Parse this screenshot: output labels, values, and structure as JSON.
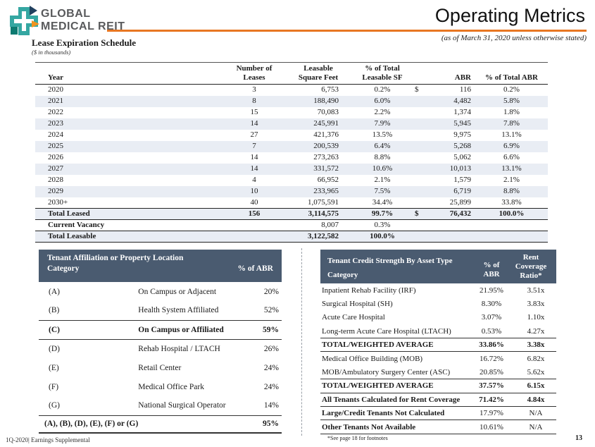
{
  "brand": {
    "name_line1": "GLOBAL",
    "name_line2": "MEDICAL REIT"
  },
  "header": {
    "title": "Operating Metrics",
    "as_of_note": "(as of March 31, 2020 unless otherwise stated)"
  },
  "section": {
    "title": "Lease Expiration Schedule",
    "units": "($ in thousands)"
  },
  "colors": {
    "accent_orange": "#E87722",
    "table_header_band": "#4A5B70",
    "row_stripe": "#E9EDF4",
    "logo_teal": "#35A7A2",
    "logo_navy": "#20405E",
    "logo_orange": "#F0941F",
    "logo_dark_teal": "#0D7A70"
  },
  "lease_table": {
    "col_year": "Year",
    "col_leases": [
      "Number of",
      "Leases"
    ],
    "col_sf": [
      "Leasable",
      "Square Feet"
    ],
    "col_sf_pct": [
      "% of Total",
      "Leasable SF"
    ],
    "col_abr": "ABR",
    "col_abr_pct": "% of Total ABR",
    "rows": [
      {
        "year": "2020",
        "leases": "3",
        "sf": "6,753",
        "sf_pct": "0.2%",
        "cur": "$",
        "abr": "116",
        "abr_pct": "0.2%",
        "style": "normal"
      },
      {
        "year": "2021",
        "leases": "8",
        "sf": "188,490",
        "sf_pct": "6.0%",
        "cur": "",
        "abr": "4,482",
        "abr_pct": "5.8%",
        "style": "normal"
      },
      {
        "year": "2022",
        "leases": "15",
        "sf": "70,083",
        "sf_pct": "2.2%",
        "cur": "",
        "abr": "1,374",
        "abr_pct": "1.8%",
        "style": "normal"
      },
      {
        "year": "2023",
        "leases": "14",
        "sf": "245,991",
        "sf_pct": "7.9%",
        "cur": "",
        "abr": "5,945",
        "abr_pct": "7.8%",
        "style": "normal"
      },
      {
        "year": "2024",
        "leases": "27",
        "sf": "421,376",
        "sf_pct": "13.5%",
        "cur": "",
        "abr": "9,975",
        "abr_pct": "13.1%",
        "style": "normal"
      },
      {
        "year": "2025",
        "leases": "7",
        "sf": "200,539",
        "sf_pct": "6.4%",
        "cur": "",
        "abr": "5,268",
        "abr_pct": "6.9%",
        "style": "normal"
      },
      {
        "year": "2026",
        "leases": "14",
        "sf": "273,263",
        "sf_pct": "8.8%",
        "cur": "",
        "abr": "5,062",
        "abr_pct": "6.6%",
        "style": "normal"
      },
      {
        "year": "2027",
        "leases": "14",
        "sf": "331,572",
        "sf_pct": "10.6%",
        "cur": "",
        "abr": "10,013",
        "abr_pct": "13.1%",
        "style": "normal"
      },
      {
        "year": "2028",
        "leases": "4",
        "sf": "66,952",
        "sf_pct": "2.1%",
        "cur": "",
        "abr": "1,579",
        "abr_pct": "2.1%",
        "style": "normal"
      },
      {
        "year": "2029",
        "leases": "10",
        "sf": "233,965",
        "sf_pct": "7.5%",
        "cur": "",
        "abr": "6,719",
        "abr_pct": "8.8%",
        "style": "normal"
      },
      {
        "year": "2030+",
        "leases": "40",
        "sf": "1,075,591",
        "sf_pct": "34.4%",
        "cur": "",
        "abr": "25,899",
        "abr_pct": "33.8%",
        "style": "normal"
      },
      {
        "year": "Total Leased",
        "leases": "156",
        "sf": "3,114,575",
        "sf_pct": "99.7%",
        "cur": "$",
        "abr": "76,432",
        "abr_pct": "100.0%",
        "style": "total"
      },
      {
        "year": "Current Vacancy",
        "leases": "",
        "sf": "8,007",
        "sf_pct": "0.3%",
        "cur": "",
        "abr": "",
        "abr_pct": "",
        "style": "vacancy"
      },
      {
        "year": "Total Leasable",
        "leases": "",
        "sf": "3,122,582",
        "sf_pct": "100.0%",
        "cur": "",
        "abr": "",
        "abr_pct": "",
        "style": "total"
      }
    ]
  },
  "affiliation_table": {
    "title": "Tenant Affiliation or Property Location",
    "col_category": "Category",
    "col_pct": "% of ABR",
    "rows": [
      {
        "code": "(A)",
        "label": "On Campus or Adjacent",
        "pct": "20%",
        "style": "normal"
      },
      {
        "code": "(B)",
        "label": "Health System Affiliated",
        "pct": "52%",
        "style": "normal"
      },
      {
        "code": "(C)",
        "label": "On Campus or Affiliated",
        "pct": "59%",
        "style": "subtotal"
      },
      {
        "code": "(D)",
        "label": "Rehab Hospital / LTACH",
        "pct": "26%",
        "style": "normal"
      },
      {
        "code": "(E)",
        "label": "Retail Center",
        "pct": "24%",
        "style": "normal"
      },
      {
        "code": "(F)",
        "label": "Medical Office Park",
        "pct": "24%",
        "style": "normal"
      },
      {
        "code": "(G)",
        "label": "National Surgical Operator",
        "pct": "14%",
        "style": "normal"
      },
      {
        "code": "(A), (B), (D), (E), (F) or (G)",
        "label": "",
        "pct": "95%",
        "style": "total"
      }
    ]
  },
  "credit_table": {
    "title": "Tenant Credit Strength By Asset Type",
    "col_category": "Category",
    "col_pct": [
      "% of",
      "ABR"
    ],
    "col_ratio": [
      "Rent",
      "Coverage",
      "Ratio*"
    ],
    "rows": [
      {
        "label": "Inpatient Rehab Facility (IRF)",
        "pct": "21.95%",
        "ratio": "3.51x",
        "style": "normal"
      },
      {
        "label": "Surgical Hospital (SH)",
        "pct": "8.30%",
        "ratio": "3.83x",
        "style": "normal"
      },
      {
        "label": "Acute Care Hospital",
        "pct": "3.07%",
        "ratio": "1.10x",
        "style": "normal"
      },
      {
        "label": "Long-term Acute Care Hospital (LTACH)",
        "pct": "0.53%",
        "ratio": "4.27x",
        "style": "normal"
      },
      {
        "label": "TOTAL/WEIGHTED AVERAGE",
        "pct": "33.86%",
        "ratio": "3.38x",
        "style": "total"
      },
      {
        "label": "Medical Office Building (MOB)",
        "pct": "16.72%",
        "ratio": "6.82x",
        "style": "normal"
      },
      {
        "label": "MOB/Ambulatory Surgery Center (ASC)",
        "pct": "20.85%",
        "ratio": "5.62x",
        "style": "normal"
      },
      {
        "label": "TOTAL/WEIGHTED AVERAGE",
        "pct": "37.57%",
        "ratio": "6.15x",
        "style": "total"
      },
      {
        "label": "All Tenants Calculated for Rent Coverage",
        "pct": "71.42%",
        "ratio": "4.84x",
        "style": "total"
      },
      {
        "label": "Large/Credit Tenants Not Calculated",
        "pct": "17.97%",
        "ratio": "N/A",
        "style": "boldlabel"
      },
      {
        "label": "Other Tenants Not Available",
        "pct": "10.61%",
        "ratio": "N/A",
        "style": "boldlabel"
      }
    ],
    "footnote": "*See page 18 for footnotes"
  },
  "footer": {
    "left": "1Q-2020|  Earnings Supplemental",
    "page": "13"
  }
}
